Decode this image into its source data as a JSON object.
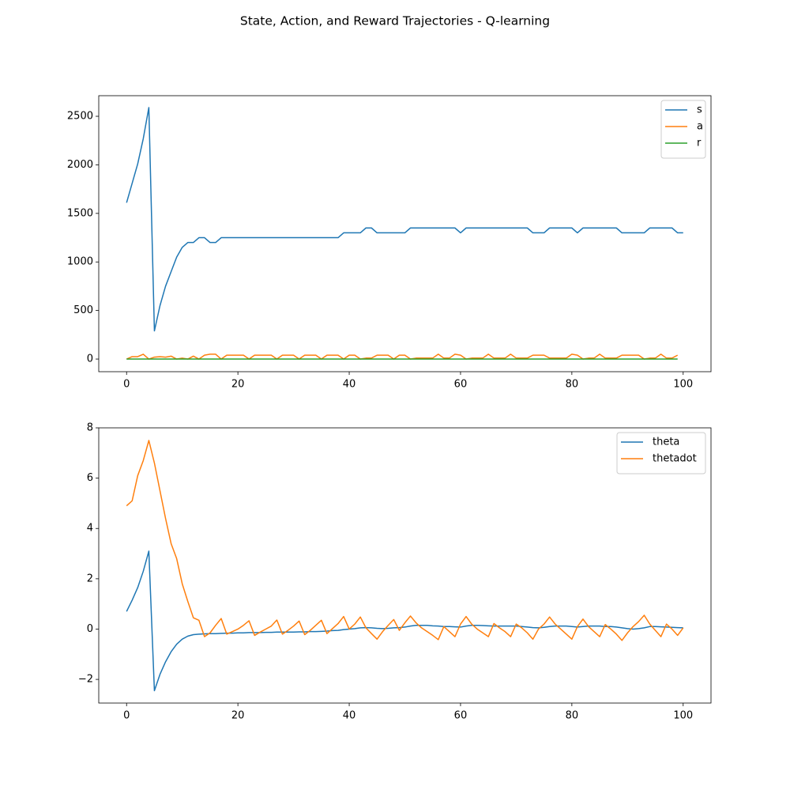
{
  "title": "State, Action, and Reward Trajectories - Q-learning",
  "chart_data": [
    {
      "type": "line",
      "x": [
        0,
        1,
        2,
        3,
        4,
        5,
        6,
        7,
        8,
        9,
        10,
        11,
        12,
        13,
        14,
        15,
        16,
        17,
        18,
        19,
        20,
        21,
        22,
        23,
        24,
        25,
        26,
        27,
        28,
        29,
        30,
        31,
        32,
        33,
        34,
        35,
        36,
        37,
        38,
        39,
        40,
        41,
        42,
        43,
        44,
        45,
        46,
        47,
        48,
        49,
        50,
        51,
        52,
        53,
        54,
        55,
        56,
        57,
        58,
        59,
        60,
        61,
        62,
        63,
        64,
        65,
        66,
        67,
        68,
        69,
        70,
        71,
        72,
        73,
        74,
        75,
        76,
        77,
        78,
        79,
        80,
        81,
        82,
        83,
        84,
        85,
        86,
        87,
        88,
        89,
        90,
        91,
        92,
        93,
        94,
        95,
        96,
        97,
        98,
        99,
        100
      ],
      "series": [
        {
          "name": "s",
          "color": "#1f77b4",
          "values": [
            1610,
            1810,
            2010,
            2270,
            2590,
            290,
            550,
            750,
            900,
            1050,
            1150,
            1200,
            1200,
            1250,
            1250,
            1200,
            1200,
            1250,
            1250,
            1250,
            1250,
            1250,
            1250,
            1250,
            1250,
            1250,
            1250,
            1250,
            1250,
            1250,
            1250,
            1250,
            1250,
            1250,
            1250,
            1250,
            1250,
            1250,
            1250,
            1300,
            1300,
            1300,
            1300,
            1350,
            1350,
            1300,
            1300,
            1300,
            1300,
            1300,
            1300,
            1350,
            1350,
            1350,
            1350,
            1350,
            1350,
            1350,
            1350,
            1350,
            1300,
            1350,
            1350,
            1350,
            1350,
            1350,
            1350,
            1350,
            1350,
            1350,
            1350,
            1350,
            1350,
            1300,
            1300,
            1300,
            1350,
            1350,
            1350,
            1350,
            1350,
            1300,
            1350,
            1350,
            1350,
            1350,
            1350,
            1350,
            1350,
            1300,
            1300,
            1300,
            1300,
            1300,
            1350,
            1350,
            1350,
            1350,
            1350,
            1300,
            1300
          ]
        },
        {
          "name": "a",
          "color": "#ff7f0e",
          "values": [
            0,
            25,
            25,
            50,
            0,
            20,
            25,
            20,
            30,
            0,
            10,
            0,
            30,
            0,
            40,
            50,
            50,
            0,
            40,
            40,
            40,
            40,
            0,
            40,
            40,
            40,
            40,
            0,
            40,
            40,
            40,
            0,
            40,
            40,
            40,
            0,
            40,
            40,
            40,
            0,
            40,
            40,
            0,
            10,
            10,
            40,
            40,
            40,
            0,
            40,
            40,
            0,
            10,
            10,
            10,
            10,
            50,
            10,
            10,
            50,
            40,
            0,
            10,
            10,
            10,
            50,
            10,
            10,
            10,
            50,
            10,
            10,
            10,
            40,
            40,
            40,
            10,
            10,
            10,
            10,
            50,
            40,
            0,
            10,
            10,
            50,
            10,
            10,
            10,
            40,
            40,
            40,
            40,
            0,
            10,
            10,
            50,
            10,
            10,
            40,
            null
          ]
        },
        {
          "name": "r",
          "color": "#2ca02c",
          "values": [
            0,
            0,
            0,
            0,
            0,
            0,
            0,
            0,
            0,
            0,
            0,
            0,
            0,
            0,
            0,
            0,
            0,
            0,
            0,
            0,
            0,
            0,
            0,
            0,
            0,
            0,
            0,
            0,
            0,
            0,
            0,
            0,
            0,
            0,
            0,
            0,
            0,
            0,
            0,
            0,
            0,
            0,
            0,
            0,
            0,
            0,
            0,
            0,
            0,
            0,
            0,
            0,
            0,
            0,
            0,
            0,
            0,
            0,
            0,
            0,
            0,
            0,
            0,
            0,
            0,
            0,
            0,
            0,
            0,
            0,
            0,
            0,
            0,
            0,
            0,
            0,
            0,
            0,
            0,
            0,
            0,
            0,
            0,
            0,
            0,
            0,
            0,
            0,
            0,
            0,
            0,
            0,
            0,
            0,
            0,
            0,
            0,
            0,
            0,
            0,
            null
          ]
        }
      ],
      "xlim": [
        -5,
        105
      ],
      "xticks": [
        0,
        20,
        40,
        60,
        80,
        100
      ],
      "ylim": [
        -130,
        2712
      ],
      "yticks": [
        0,
        500,
        1000,
        1500,
        2000,
        2500
      ],
      "legend": "upper right"
    },
    {
      "type": "line",
      "x": [
        0,
        1,
        2,
        3,
        4,
        5,
        6,
        7,
        8,
        9,
        10,
        11,
        12,
        13,
        14,
        15,
        16,
        17,
        18,
        19,
        20,
        21,
        22,
        23,
        24,
        25,
        26,
        27,
        28,
        29,
        30,
        31,
        32,
        33,
        34,
        35,
        36,
        37,
        38,
        39,
        40,
        41,
        42,
        43,
        44,
        45,
        46,
        47,
        48,
        49,
        50,
        51,
        52,
        53,
        54,
        55,
        56,
        57,
        58,
        59,
        60,
        61,
        62,
        63,
        64,
        65,
        66,
        67,
        68,
        69,
        70,
        71,
        72,
        73,
        74,
        75,
        76,
        77,
        78,
        79,
        80,
        81,
        82,
        83,
        84,
        85,
        86,
        87,
        88,
        89,
        90,
        91,
        92,
        93,
        94,
        95,
        96,
        97,
        98,
        99,
        100
      ],
      "series": [
        {
          "name": "theta",
          "color": "#1f77b4",
          "values": [
            0.7,
            1.15,
            1.65,
            2.3,
            3.1,
            -2.45,
            -1.8,
            -1.3,
            -0.9,
            -0.6,
            -0.4,
            -0.28,
            -0.22,
            -0.2,
            -0.19,
            -0.18,
            -0.18,
            -0.17,
            -0.16,
            -0.16,
            -0.15,
            -0.15,
            -0.14,
            -0.14,
            -0.14,
            -0.13,
            -0.13,
            -0.12,
            -0.12,
            -0.12,
            -0.12,
            -0.11,
            -0.11,
            -0.1,
            -0.1,
            -0.09,
            -0.08,
            -0.06,
            -0.05,
            -0.02,
            0,
            0.02,
            0.05,
            0.06,
            0.05,
            0.03,
            0.02,
            0.03,
            0.05,
            0.06,
            0.08,
            0.12,
            0.15,
            0.15,
            0.15,
            0.13,
            0.12,
            0.1,
            0.1,
            0.09,
            0.08,
            0.12,
            0.15,
            0.15,
            0.14,
            0.13,
            0.12,
            0.12,
            0.12,
            0.12,
            0.12,
            0.1,
            0.08,
            0.06,
            0.05,
            0.07,
            0.1,
            0.12,
            0.12,
            0.12,
            0.1,
            0.08,
            0.1,
            0.12,
            0.12,
            0.12,
            0.1,
            0.1,
            0.08,
            0.05,
            0.02,
            0,
            0.02,
            0.05,
            0.1,
            0.1,
            0.09,
            0.08,
            0.07,
            0.06,
            0.05
          ]
        },
        {
          "name": "thetadot",
          "color": "#ff7f0e",
          "values": [
            4.9,
            5.1,
            6.1,
            6.7,
            7.5,
            6.6,
            5.5,
            4.4,
            3.4,
            2.8,
            1.8,
            1.1,
            0.45,
            0.35,
            -0.3,
            -0.15,
            0.15,
            0.42,
            -0.2,
            -0.1,
            0,
            0.15,
            0.33,
            -0.25,
            -0.12,
            0,
            0.12,
            0.36,
            -0.2,
            -0.05,
            0.12,
            0.32,
            -0.22,
            -0.05,
            0.15,
            0.35,
            -0.18,
            0.02,
            0.22,
            0.5,
            0,
            0.2,
            0.48,
            0.05,
            -0.18,
            -0.4,
            -0.1,
            0.15,
            0.38,
            -0.05,
            0.25,
            0.52,
            0.25,
            0.05,
            -0.1,
            -0.25,
            -0.42,
            0.1,
            -0.1,
            -0.3,
            0.2,
            0.5,
            0.2,
            0,
            -0.15,
            -0.3,
            0.22,
            0.05,
            -0.1,
            -0.3,
            0.2,
            0.05,
            -0.15,
            -0.4,
            0,
            0.2,
            0.48,
            0.2,
            0,
            -0.2,
            -0.4,
            0.1,
            0.4,
            0.1,
            -0.1,
            -0.3,
            0.18,
            0,
            -0.2,
            -0.45,
            -0.15,
            0.1,
            0.3,
            0.55,
            0.2,
            -0.05,
            -0.3,
            0.2,
            0,
            -0.25,
            0.05
          ]
        }
      ],
      "xlim": [
        -5,
        105
      ],
      "xticks": [
        0,
        20,
        40,
        60,
        80,
        100
      ],
      "ylim": [
        -2.94,
        8.0
      ],
      "yticks": [
        {
          "value": -2,
          "label": "−2"
        },
        0,
        2,
        4,
        6,
        8
      ],
      "legend": "upper right"
    }
  ]
}
